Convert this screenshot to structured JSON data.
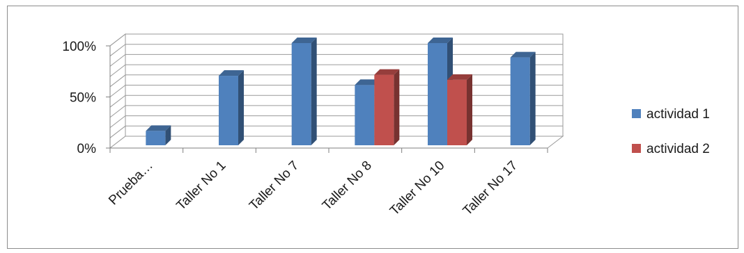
{
  "chart_data": {
    "type": "bar",
    "categories": [
      "Prueba…",
      "Taller No 1",
      "Taller No 7",
      "Taller No 8",
      "Taller No 10",
      "Taller No 17"
    ],
    "series": [
      {
        "name": "actividad 1",
        "color": "#4f81bd",
        "values": [
          0.14,
          0.68,
          1.0,
          0.59,
          1.0,
          0.86
        ]
      },
      {
        "name": "actividad 2",
        "color": "#c0504d",
        "values": [
          null,
          null,
          null,
          0.69,
          0.64,
          null
        ]
      }
    ],
    "y_ticks": [
      "0%",
      "50%",
      "100%"
    ],
    "ylim": [
      0,
      1
    ],
    "grid": true,
    "style": "3d-clustered-column",
    "legend_position": "right"
  }
}
